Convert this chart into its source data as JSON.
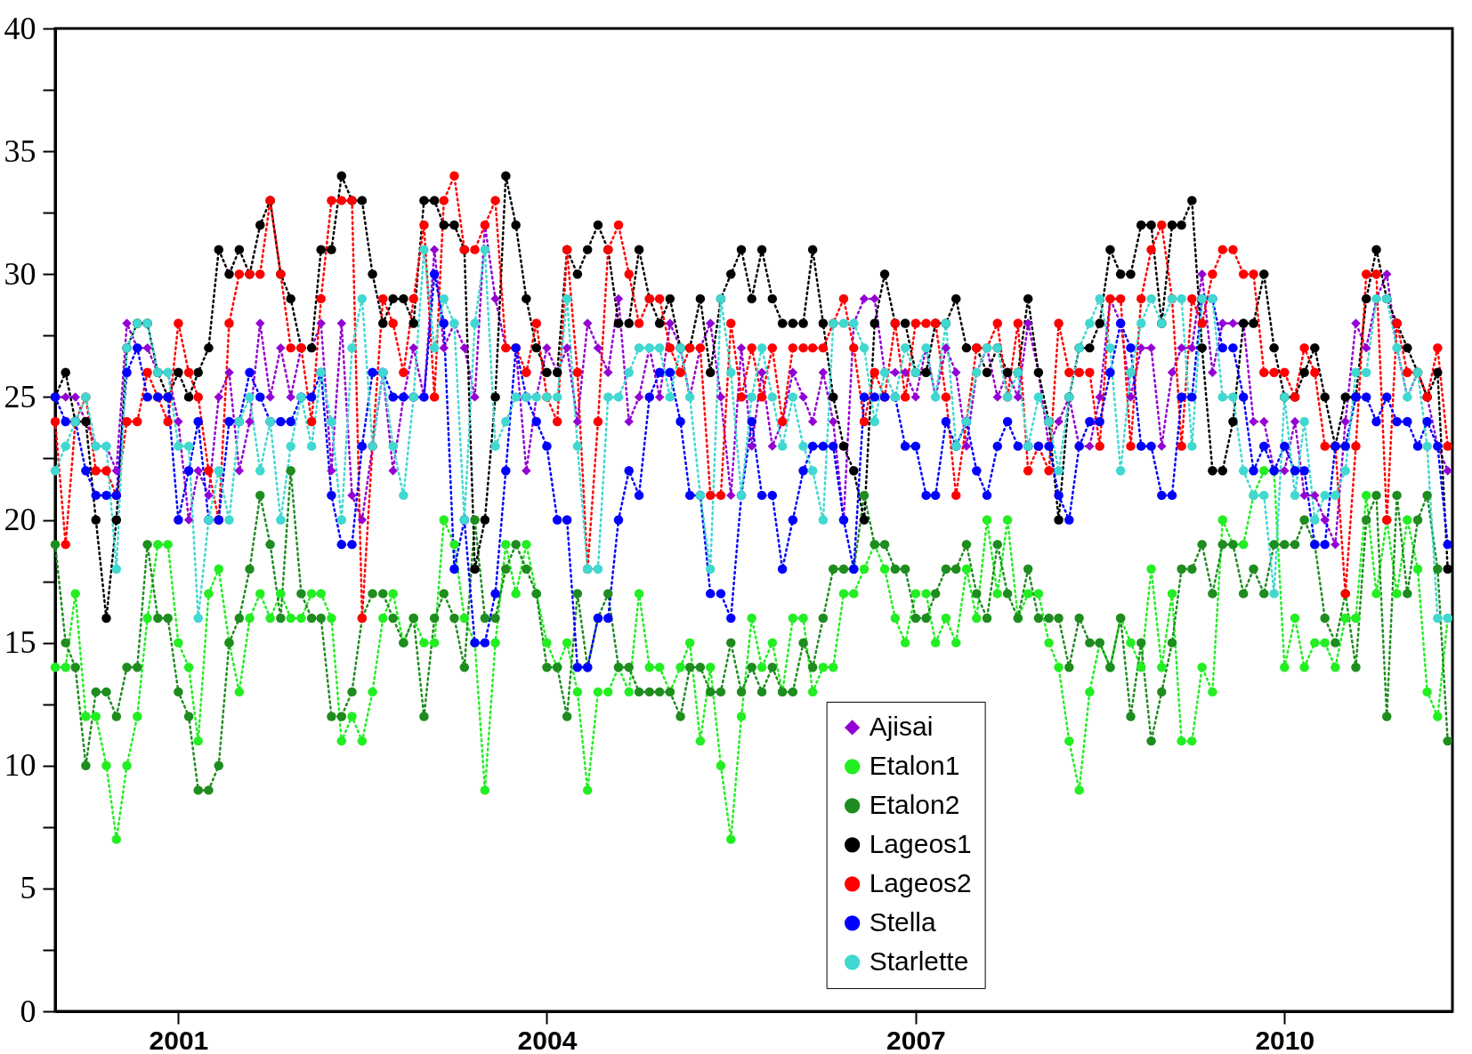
{
  "chart_data": {
    "type": "line",
    "line_style": "dotted",
    "legend": "bottom",
    "grid": false,
    "xlim": [
      "2000-01-01",
      "2011-05-15"
    ],
    "xticks": [
      "2001",
      "2004",
      "2007",
      "2010"
    ],
    "ylim": [
      0,
      40
    ],
    "yticks": [
      0,
      {
        "value": 2.5,
        "label": null
      },
      5,
      {
        "value": 7.5,
        "label": null
      },
      10,
      {
        "value": 12.5,
        "label": null
      },
      15,
      {
        "value": 17.5,
        "label": null
      },
      20,
      {
        "value": 22.5,
        "label": null
      },
      25,
      {
        "value": 27.5,
        "label": null
      },
      30,
      {
        "value": 32.5,
        "label": null
      },
      35,
      {
        "value": 37.5,
        "label": null
      },
      40
    ],
    "x": [
      "2000-01",
      "2000-02",
      "2000-03",
      "2000-04",
      "2000-05",
      "2000-06",
      "2000-07",
      "2000-08",
      "2000-09",
      "2000-10",
      "2000-11",
      "2000-12",
      "2001-01",
      "2001-02",
      "2001-03",
      "2001-04",
      "2001-05",
      "2001-06",
      "2001-07",
      "2001-08",
      "2001-09",
      "2001-10",
      "2001-11",
      "2001-12",
      "2002-01",
      "2002-02",
      "2002-03",
      "2002-04",
      "2002-05",
      "2002-06",
      "2002-07",
      "2002-08",
      "2002-09",
      "2002-10",
      "2002-11",
      "2002-12",
      "2003-01",
      "2003-02",
      "2003-03",
      "2003-04",
      "2003-05",
      "2003-06",
      "2003-07",
      "2003-08",
      "2003-09",
      "2003-10",
      "2003-11",
      "2003-12",
      "2004-01",
      "2004-02",
      "2004-03",
      "2004-04",
      "2004-05",
      "2004-06",
      "2004-07",
      "2004-08",
      "2004-09",
      "2004-10",
      "2004-11",
      "2004-12",
      "2005-01",
      "2005-02",
      "2005-03",
      "2005-04",
      "2005-05",
      "2005-06",
      "2005-07",
      "2005-08",
      "2005-09",
      "2005-10",
      "2005-11",
      "2005-12",
      "2006-01",
      "2006-02",
      "2006-03",
      "2006-04",
      "2006-05",
      "2006-06",
      "2006-07",
      "2006-08",
      "2006-09",
      "2006-10",
      "2006-11",
      "2006-12",
      "2007-01",
      "2007-02",
      "2007-03",
      "2007-04",
      "2007-05",
      "2007-06",
      "2007-07",
      "2007-08",
      "2007-09",
      "2007-10",
      "2007-11",
      "2007-12",
      "2008-01",
      "2008-02",
      "2008-03",
      "2008-04",
      "2008-05",
      "2008-06",
      "2008-07",
      "2008-08",
      "2008-09",
      "2008-10",
      "2008-11",
      "2008-12",
      "2009-01",
      "2009-02",
      "2009-03",
      "2009-04",
      "2009-05",
      "2009-06",
      "2009-07",
      "2009-08",
      "2009-09",
      "2009-10",
      "2009-11",
      "2009-12",
      "2010-01",
      "2010-02",
      "2010-03",
      "2010-04",
      "2010-05",
      "2010-06",
      "2010-07",
      "2010-08",
      "2010-09",
      "2010-10",
      "2010-11",
      "2010-12",
      "2011-01",
      "2011-02",
      "2011-03",
      "2011-04",
      "2011-05"
    ],
    "series": [
      {
        "name": "Ajisai",
        "color": "#9400d3",
        "marker": "diamond",
        "values": [
          25,
          25,
          25,
          24,
          23,
          23,
          22,
          28,
          27,
          27,
          26,
          26,
          24,
          20,
          22,
          21,
          25,
          26,
          22,
          24,
          28,
          25,
          27,
          25,
          27,
          27,
          28,
          22,
          28,
          21,
          20,
          23,
          26,
          22,
          25,
          27,
          25,
          31,
          27,
          28,
          27,
          25,
          32,
          29,
          27,
          27,
          22,
          25,
          27,
          26,
          27,
          24,
          28,
          27,
          26,
          29,
          24,
          25,
          27,
          25,
          28,
          27,
          25,
          27,
          28,
          25,
          21,
          27,
          23,
          26,
          23,
          24,
          26,
          25,
          24,
          26,
          24,
          20,
          28,
          29,
          29,
          26,
          26,
          26,
          25,
          27,
          25,
          27,
          26,
          23,
          26,
          27,
          25,
          26,
          25,
          28,
          26,
          23,
          24,
          25,
          23,
          23,
          25,
          29,
          28,
          25,
          27,
          27,
          23,
          26,
          27,
          27,
          30,
          26,
          28,
          28,
          28,
          24,
          24,
          22,
          22,
          24,
          21,
          21,
          20,
          19,
          24,
          28,
          27,
          29,
          30,
          27,
          25,
          26,
          25,
          23,
          22
        ]
      },
      {
        "name": "Etalon1",
        "color": "#22ee22",
        "marker": "circle",
        "values": [
          14,
          14,
          17,
          12,
          12,
          10,
          7,
          10,
          12,
          16,
          19,
          19,
          15,
          14,
          11,
          17,
          18,
          15,
          13,
          16,
          17,
          16,
          17,
          16,
          16,
          17,
          17,
          16,
          11,
          12,
          11,
          13,
          16,
          17,
          15,
          16,
          15,
          15,
          20,
          19,
          16,
          15,
          9,
          15,
          19,
          17,
          19,
          17,
          15,
          14,
          15,
          13,
          9,
          13,
          13,
          14,
          13,
          17,
          14,
          14,
          13,
          14,
          15,
          11,
          14,
          10,
          7,
          12,
          16,
          14,
          15,
          13,
          16,
          16,
          13,
          14,
          14,
          17,
          17,
          18,
          19,
          18,
          16,
          15,
          17,
          17,
          15,
          16,
          15,
          18,
          16,
          20,
          17,
          20,
          16,
          17,
          17,
          15,
          14,
          11,
          9,
          13,
          15,
          14,
          16,
          15,
          14,
          18,
          14,
          17,
          11,
          11,
          14,
          13,
          20,
          19,
          19,
          21,
          22,
          22,
          14,
          16,
          14,
          15,
          15,
          14,
          16,
          16,
          21,
          17,
          20,
          17,
          20,
          18,
          13,
          12,
          16
        ]
      },
      {
        "name": "Etalon2",
        "color": "#1e8c1e",
        "marker": "circle",
        "values": [
          19,
          15,
          14,
          10,
          13,
          13,
          12,
          14,
          14,
          19,
          16,
          16,
          13,
          12,
          9,
          9,
          10,
          15,
          16,
          18,
          21,
          19,
          16,
          22,
          17,
          16,
          16,
          12,
          12,
          13,
          16,
          17,
          17,
          16,
          15,
          16,
          12,
          16,
          17,
          16,
          14,
          20,
          16,
          16,
          18,
          19,
          18,
          17,
          14,
          14,
          12,
          17,
          14,
          16,
          17,
          14,
          14,
          13,
          13,
          13,
          13,
          12,
          14,
          14,
          13,
          13,
          15,
          13,
          14,
          13,
          14,
          13,
          13,
          15,
          14,
          16,
          18,
          18,
          18,
          21,
          19,
          19,
          18,
          18,
          16,
          16,
          17,
          18,
          18,
          19,
          17,
          16,
          19,
          17,
          16,
          18,
          16,
          16,
          16,
          14,
          16,
          15,
          15,
          14,
          16,
          12,
          15,
          11,
          13,
          15,
          18,
          18,
          19,
          17,
          19,
          19,
          17,
          18,
          17,
          19,
          19,
          19,
          20,
          19,
          16,
          15,
          17,
          14,
          20,
          21,
          12,
          21,
          17,
          20,
          21,
          18,
          11
        ]
      },
      {
        "name": "Lageos1",
        "color": "#000000",
        "marker": "circle",
        "values": [
          25,
          26,
          24,
          24,
          20,
          16,
          20,
          27,
          28,
          28,
          26,
          25,
          26,
          25,
          26,
          27,
          31,
          30,
          31,
          30,
          32,
          33,
          30,
          29,
          27,
          27,
          31,
          31,
          34,
          33,
          33,
          30,
          28,
          29,
          29,
          28,
          33,
          33,
          32,
          32,
          31,
          18,
          20,
          25,
          34,
          32,
          29,
          27,
          26,
          26,
          31,
          30,
          31,
          32,
          31,
          28,
          28,
          31,
          29,
          28,
          29,
          27,
          27,
          29,
          26,
          29,
          30,
          31,
          29,
          31,
          29,
          28,
          28,
          28,
          31,
          28,
          25,
          23,
          22,
          20,
          28,
          30,
          28,
          28,
          26,
          26,
          28,
          28,
          29,
          27,
          27,
          26,
          27,
          26,
          26,
          29,
          26,
          24,
          20,
          25,
          27,
          27,
          28,
          31,
          30,
          30,
          32,
          32,
          28,
          32,
          32,
          33,
          27,
          22,
          22,
          24,
          28,
          28,
          30,
          27,
          25,
          25,
          26,
          27,
          25,
          23,
          25,
          25,
          29,
          31,
          29,
          28,
          27,
          26,
          25,
          26,
          18
        ]
      },
      {
        "name": "Lageos2",
        "color": "#ff0000",
        "marker": "circle",
        "values": [
          24,
          19,
          24,
          25,
          22,
          22,
          21,
          24,
          24,
          26,
          25,
          24,
          28,
          26,
          25,
          22,
          20,
          28,
          30,
          30,
          30,
          33,
          30,
          27,
          27,
          24,
          29,
          33,
          33,
          33,
          16,
          23,
          29,
          28,
          26,
          29,
          32,
          25,
          33,
          34,
          31,
          31,
          32,
          33,
          27,
          27,
          26,
          28,
          25,
          24,
          31,
          26,
          18,
          24,
          31,
          32,
          30,
          28,
          29,
          29,
          27,
          26,
          27,
          27,
          21,
          21,
          28,
          25,
          27,
          25,
          27,
          24,
          27,
          27,
          27,
          27,
          28,
          29,
          27,
          24,
          26,
          25,
          28,
          25,
          28,
          28,
          28,
          25,
          21,
          24,
          27,
          27,
          28,
          25,
          28,
          22,
          23,
          22,
          28,
          26,
          26,
          26,
          23,
          29,
          29,
          23,
          29,
          31,
          32,
          29,
          23,
          29,
          28,
          30,
          31,
          31,
          30,
          30,
          26,
          26,
          26,
          25,
          27,
          26,
          23,
          23,
          17,
          23,
          30,
          30,
          20,
          28,
          26,
          26,
          25,
          27,
          23
        ]
      },
      {
        "name": "Stella",
        "color": "#0000ff",
        "marker": "circle",
        "values": [
          25,
          24,
          24,
          22,
          21,
          21,
          21,
          26,
          27,
          25,
          25,
          25,
          20,
          22,
          24,
          20,
          20,
          24,
          24,
          26,
          25,
          24,
          24,
          24,
          25,
          25,
          26,
          21,
          19,
          19,
          23,
          26,
          26,
          25,
          25,
          25,
          25,
          30,
          28,
          18,
          20,
          15,
          15,
          17,
          22,
          27,
          25,
          24,
          23,
          20,
          20,
          14,
          14,
          16,
          16,
          20,
          22,
          21,
          25,
          26,
          26,
          24,
          21,
          21,
          17,
          17,
          16,
          21,
          24,
          21,
          21,
          18,
          20,
          22,
          23,
          23,
          23,
          20,
          18,
          25,
          25,
          25,
          25,
          23,
          23,
          21,
          21,
          24,
          23,
          24,
          22,
          21,
          23,
          24,
          23,
          23,
          23,
          23,
          21,
          20,
          23,
          24,
          24,
          26,
          28,
          27,
          23,
          23,
          21,
          21,
          25,
          25,
          29,
          29,
          27,
          27,
          25,
          22,
          23,
          22,
          23,
          22,
          22,
          19,
          19,
          23,
          23,
          25,
          25,
          24,
          25,
          24,
          24,
          23,
          24,
          23,
          19
        ]
      },
      {
        "name": "Starlette",
        "color": "#40d8d0",
        "marker": "circle",
        "values": [
          22,
          23,
          24,
          25,
          23,
          23,
          18,
          27,
          28,
          28,
          26,
          26,
          23,
          23,
          16,
          20,
          22,
          20,
          24,
          25,
          22,
          24,
          20,
          23,
          25,
          23,
          26,
          24,
          20,
          27,
          29,
          23,
          26,
          23,
          21,
          25,
          31,
          27,
          29,
          28,
          20,
          28,
          31,
          23,
          24,
          25,
          25,
          25,
          25,
          25,
          29,
          23,
          18,
          18,
          25,
          25,
          26,
          27,
          27,
          27,
          25,
          27,
          25,
          21,
          18,
          29,
          26,
          21,
          25,
          27,
          25,
          23,
          25,
          23,
          22,
          20,
          28,
          28,
          28,
          27,
          24,
          26,
          25,
          27,
          26,
          27,
          25,
          28,
          23,
          24,
          26,
          27,
          27,
          25,
          26,
          23,
          25,
          24,
          22,
          25,
          27,
          28,
          29,
          27,
          22,
          26,
          28,
          29,
          28,
          29,
          29,
          23,
          29,
          29,
          25,
          25,
          22,
          21,
          21,
          17,
          25,
          21,
          24,
          20,
          21,
          21,
          22,
          26,
          26,
          29,
          29,
          27,
          25,
          26,
          23,
          16,
          16
        ]
      }
    ]
  }
}
